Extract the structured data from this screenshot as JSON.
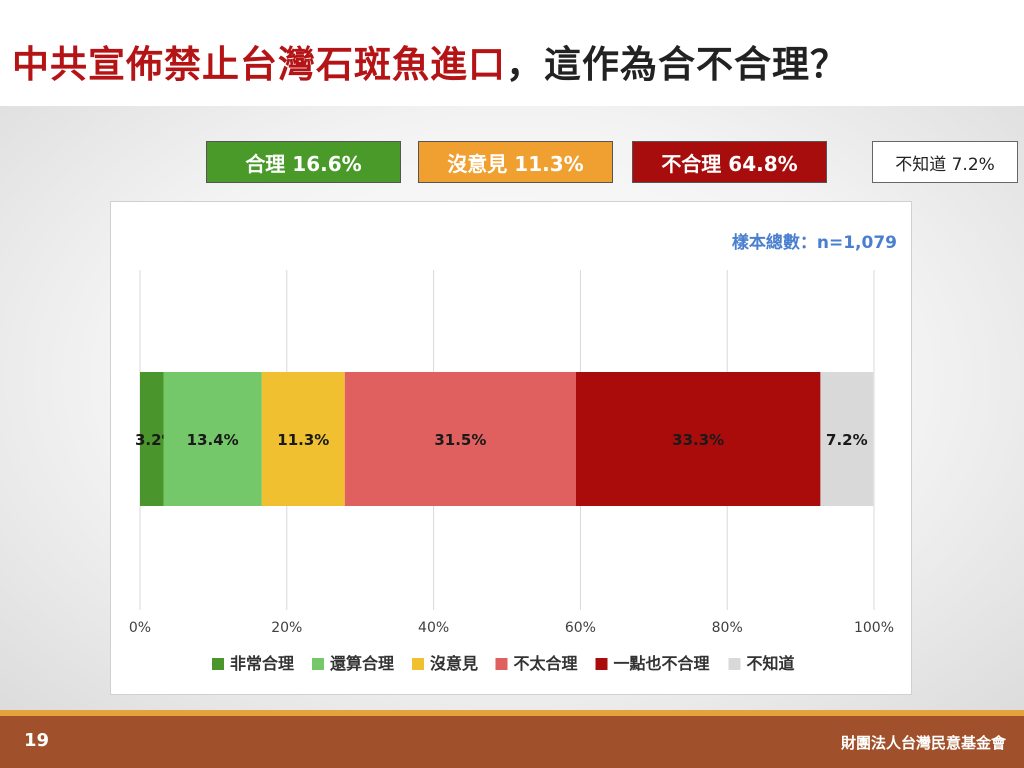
{
  "title": {
    "part1": "中共宣佈禁止台灣石斑魚進口",
    "part2": "，這作為合不合理？"
  },
  "summary_boxes": [
    {
      "label": "合理 16.6%",
      "color": "#4a9a2a"
    },
    {
      "label": "沒意見 11.3%",
      "color": "#f0a030"
    },
    {
      "label": "不合理 64.8%",
      "color": "#a80d0d"
    },
    {
      "label": "不知道 7.2%",
      "color": "#ffffff"
    }
  ],
  "sample_size": "樣本總數：n=1,079",
  "chart_data": {
    "type": "bar",
    "orientation": "horizontal",
    "stacked": true,
    "xlim": [
      0,
      100
    ],
    "x_ticks": [
      "0%",
      "20%",
      "40%",
      "60%",
      "80%",
      "100%"
    ],
    "grid": true,
    "legend_position": "bottom",
    "series": [
      {
        "name": "非常合理",
        "value": 3.2,
        "label": "3.2%",
        "color": "#4a962c"
      },
      {
        "name": "還算合理",
        "value": 13.4,
        "label": "13.4%",
        "color": "#74c86a"
      },
      {
        "name": "沒意見",
        "value": 11.3,
        "label": "11.3%",
        "color": "#f0c030"
      },
      {
        "name": "不太合理",
        "value": 31.5,
        "label": "31.5%",
        "color": "#e06060"
      },
      {
        "name": "一點也不合理",
        "value": 33.3,
        "label": "33.3%",
        "color": "#aa0c0c"
      },
      {
        "name": "不知道",
        "value": 7.2,
        "label": "7.2%",
        "color": "#d9d9d9"
      }
    ]
  },
  "footer": {
    "page_number": "19",
    "organization": "財團法人台灣民意基金會"
  }
}
